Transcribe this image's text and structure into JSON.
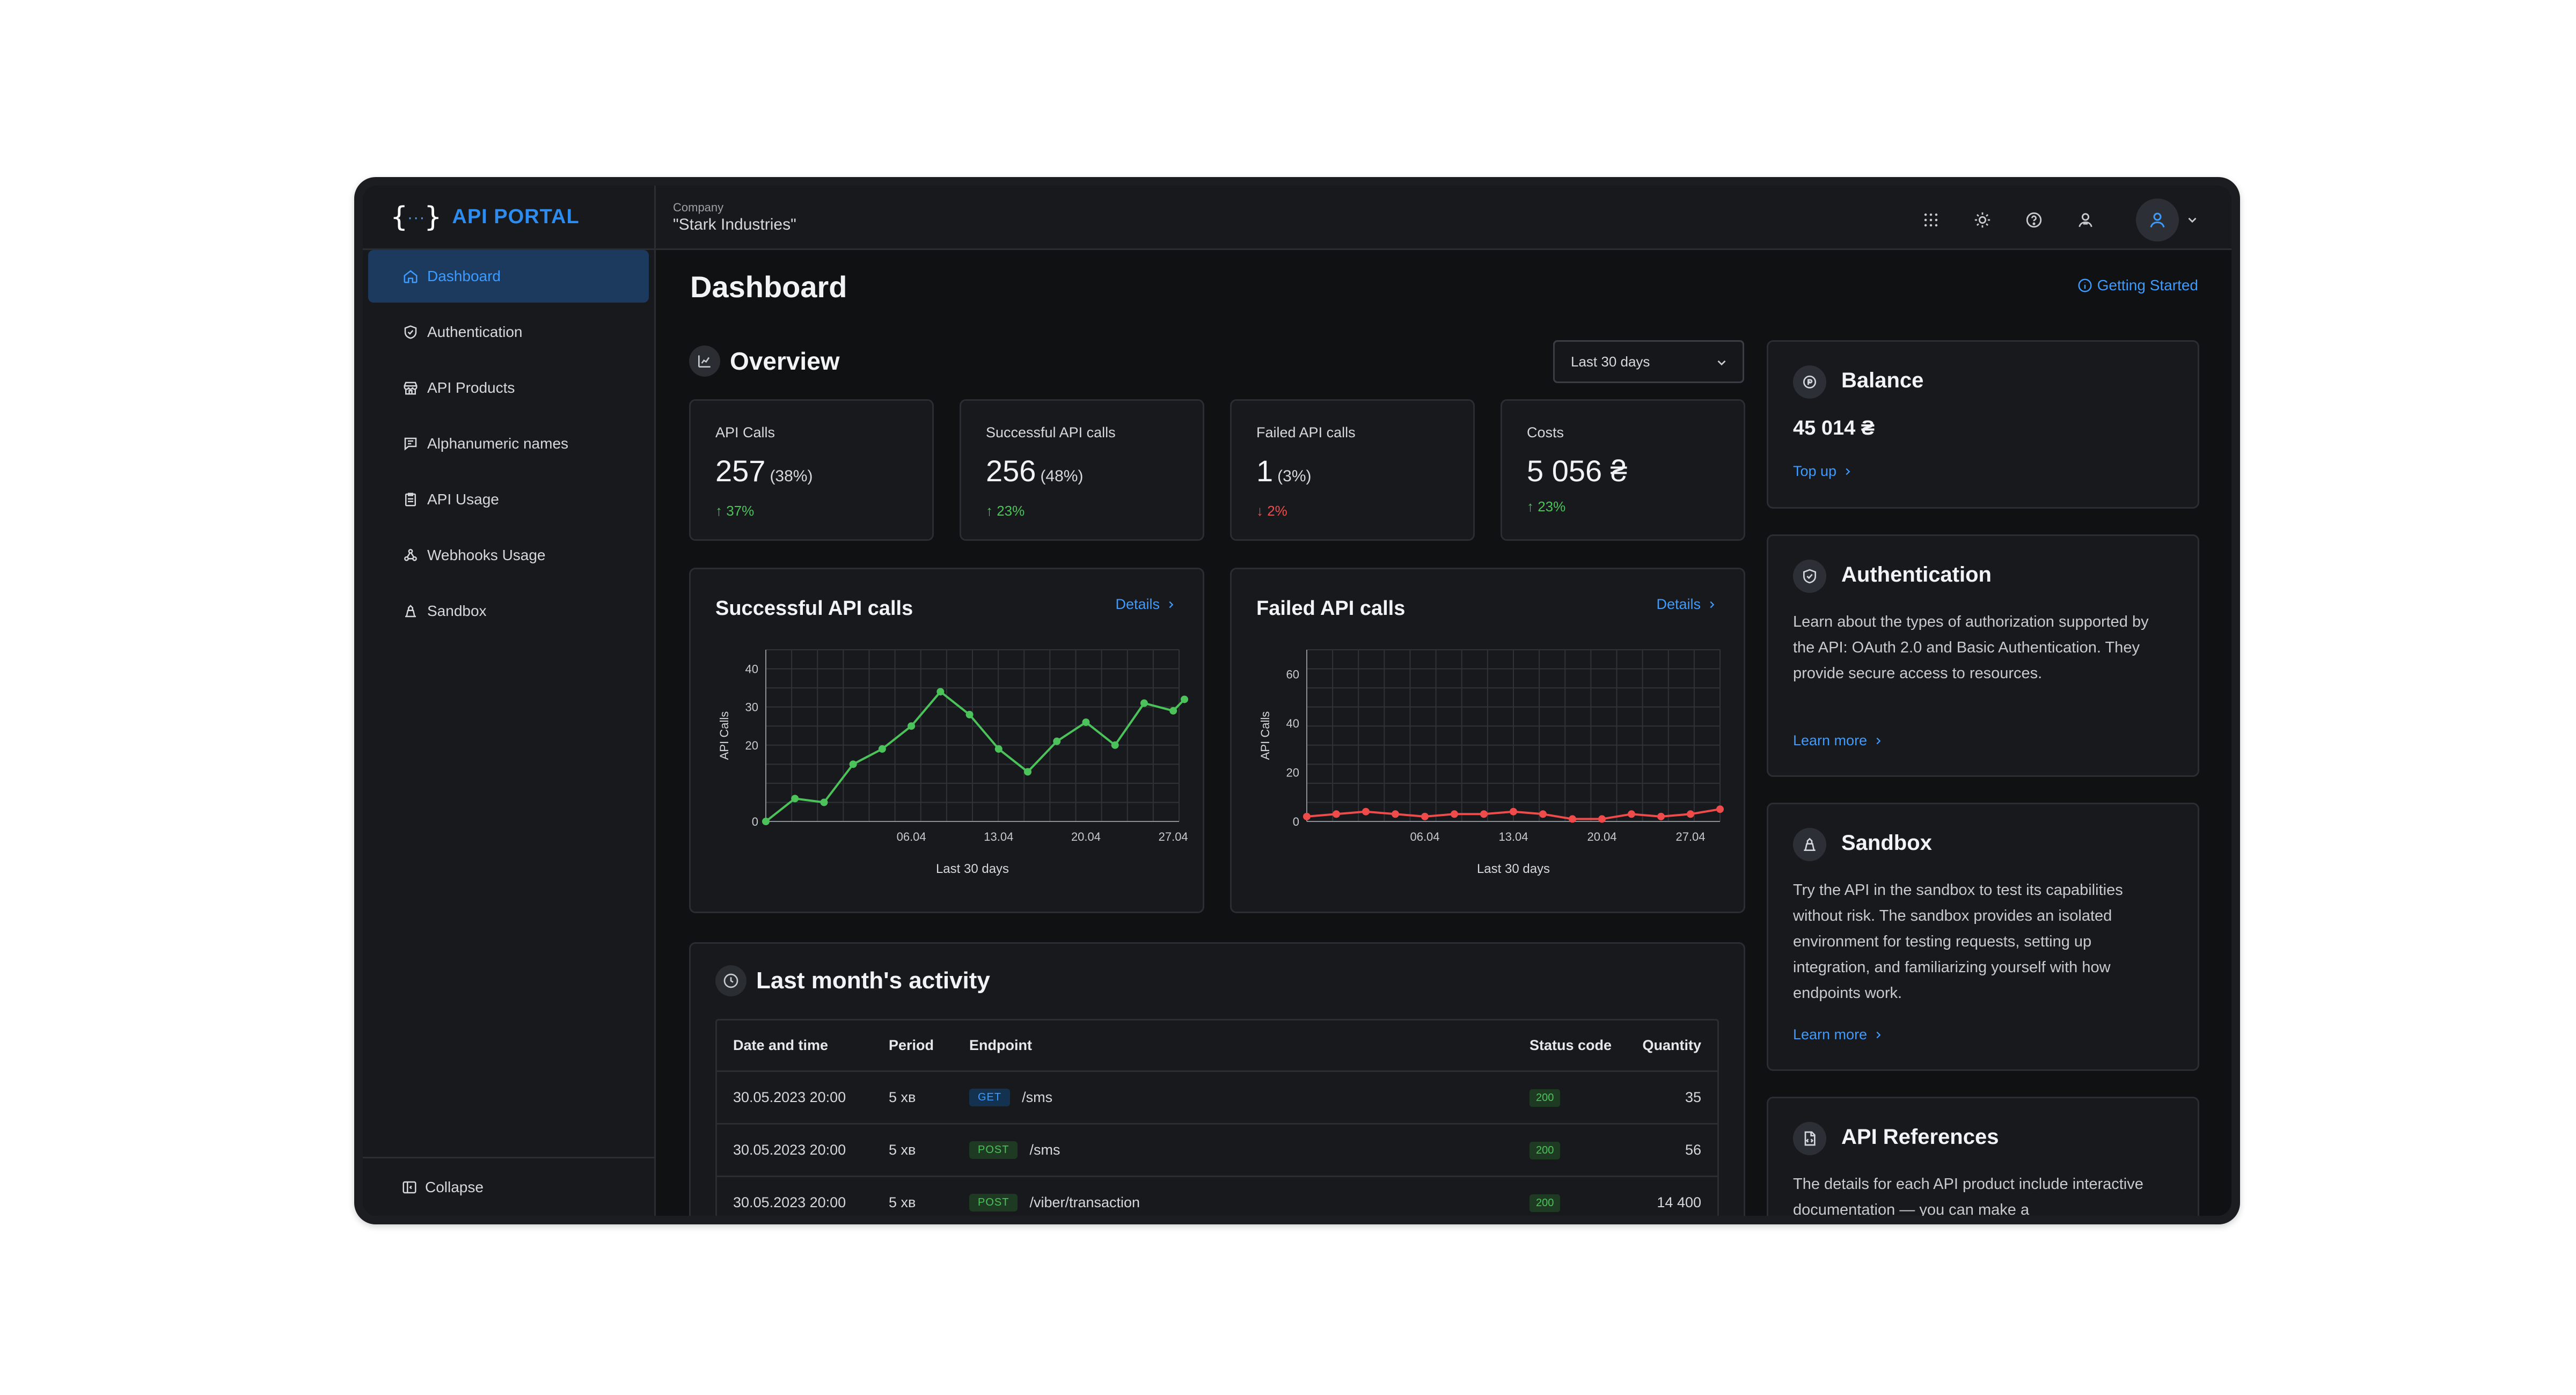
{
  "app": {
    "logo_mark": "{···}",
    "name": "API PORTAL"
  },
  "sidebar": {
    "items": [
      {
        "label": "Dashboard",
        "icon": "home-icon",
        "active": true
      },
      {
        "label": "Authentication",
        "icon": "shield-check-icon"
      },
      {
        "label": "API Products",
        "icon": "store-icon"
      },
      {
        "label": "Alphanumeric names",
        "icon": "message-icon"
      },
      {
        "label": "API Usage",
        "icon": "clipboard-icon"
      },
      {
        "label": "Webhooks Usage",
        "icon": "webhook-icon"
      },
      {
        "label": "Sandbox",
        "icon": "sandbox-icon"
      }
    ],
    "collapse_label": "Collapse"
  },
  "topbar": {
    "company_label": "Company",
    "company_name": "\"Stark Industries\"",
    "icons": [
      "apps-grid-icon",
      "sun-icon",
      "help-icon",
      "user-switch-icon",
      "avatar-icon"
    ]
  },
  "page": {
    "title": "Dashboard",
    "getting_started": "Getting Started"
  },
  "overview": {
    "title": "Overview",
    "period_select": "Last 30 days",
    "stats": [
      {
        "label": "API Calls",
        "value": "257",
        "share": "(38%)",
        "trend": "↑ 37%",
        "direction": "up"
      },
      {
        "label": "Successful API calls",
        "value": "256",
        "share": "(48%)",
        "trend": "↑ 23%",
        "direction": "up"
      },
      {
        "label": "Failed API calls",
        "value": "1",
        "share": "(3%)",
        "trend": "↓ 2%",
        "direction": "down"
      },
      {
        "label": "Costs",
        "value": "5 056 ₴",
        "share": "",
        "trend": "↑ 23%",
        "direction": "up"
      }
    ]
  },
  "charts": {
    "details_label": "Details"
  },
  "chart_data": [
    {
      "type": "line",
      "title": "Successful API calls",
      "xlabel": "Last 30 days",
      "ylabel": "API Calls",
      "color": "#4cc35a",
      "ylim": [
        0,
        45
      ],
      "yticks": [
        0,
        10,
        20,
        30,
        40
      ],
      "ytick_labels": [
        "0",
        "",
        "20",
        "30",
        "40"
      ],
      "xtick_labels": [
        {
          "x": 5,
          "label": "06.04"
        },
        {
          "x": 8,
          "label": "13.04"
        },
        {
          "x": 11,
          "label": "20.04"
        },
        {
          "x": 14,
          "label": "27.04"
        }
      ],
      "x": [
        0,
        1,
        2,
        3,
        4,
        5,
        6,
        7,
        8,
        9,
        10,
        11,
        12,
        13,
        14,
        15
      ],
      "values": [
        0,
        6,
        5,
        15,
        19,
        25,
        34,
        28,
        19,
        13,
        21,
        26,
        20,
        31,
        29,
        32
      ],
      "xmax": 14.2
    },
    {
      "type": "line",
      "title": "Failed API calls",
      "xlabel": "Last 30 days",
      "ylabel": "API Calls",
      "color": "#ef4b4b",
      "ylim": [
        0,
        70
      ],
      "yticks": [
        0,
        20,
        40,
        60
      ],
      "ytick_labels": [
        "0",
        "20",
        "40",
        "60"
      ],
      "xtick_labels": [
        {
          "x": 4,
          "label": "06.04"
        },
        {
          "x": 7,
          "label": "13.04"
        },
        {
          "x": 10,
          "label": "20.04"
        },
        {
          "x": 13,
          "label": "27.04"
        }
      ],
      "x": [
        0,
        1,
        2,
        3,
        4,
        5,
        6,
        7,
        8,
        9,
        10,
        11,
        12,
        13,
        14
      ],
      "values": [
        2,
        3,
        4,
        3,
        2,
        3,
        3,
        4,
        3,
        1,
        1,
        3,
        2,
        3,
        5
      ],
      "xmax": 14
    }
  ],
  "activity": {
    "title": "Last month's activity",
    "columns": [
      "Date and time",
      "Period",
      "Endpoint",
      "Status code",
      "Quantity"
    ],
    "rows": [
      {
        "date": "30.05.2023 20:00",
        "period": "5 хв",
        "method": "GET",
        "endpoint": "/sms",
        "status": "200",
        "quantity": "35"
      },
      {
        "date": "30.05.2023 20:00",
        "period": "5 хв",
        "method": "POST",
        "endpoint": "/sms",
        "status": "200",
        "quantity": "56"
      },
      {
        "date": "30.05.2023 20:00",
        "period": "5 хв",
        "method": "POST",
        "endpoint": "/viber/transaction",
        "status": "200",
        "quantity": "14 400"
      }
    ]
  },
  "side": {
    "balance": {
      "title": "Balance",
      "value": "45 014 ₴",
      "link": "Top up"
    },
    "authentication": {
      "title": "Authentication",
      "text": "Learn about the types of authorization supported by the API: OAuth 2.0 and Basic Authentication. They provide secure access to resources.",
      "link": "Learn more"
    },
    "sandbox": {
      "title": "Sandbox",
      "text": "Try the API in the sandbox to test its capabilities without risk. The sandbox provides an isolated environment for testing requests, setting up integration, and familiarizing yourself with how endpoints work.",
      "link": "Learn more"
    },
    "references": {
      "title": "API References",
      "text": "The details for each API product include interactive documentation — you can make a"
    }
  }
}
